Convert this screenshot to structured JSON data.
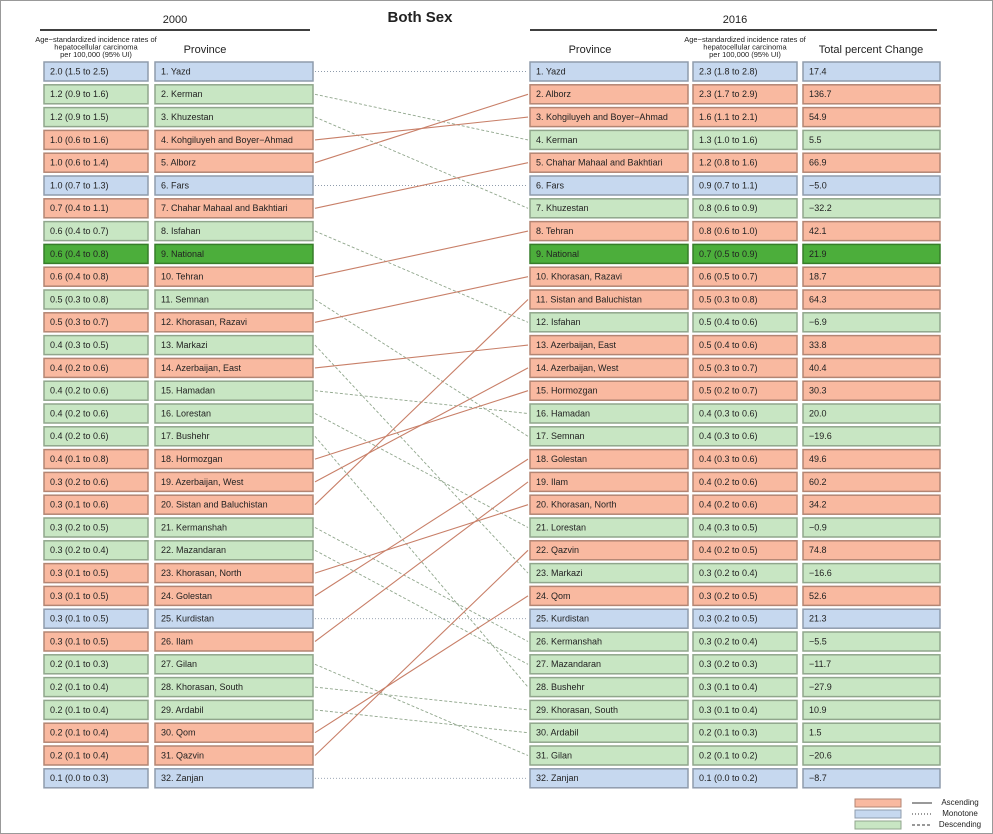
{
  "title": "Both Sex",
  "left": {
    "heading": "2000",
    "rate_header": [
      "Age−standardized incidence rates of",
      "hepatocellular carcinoma",
      "per 100,000 (95% UI)"
    ],
    "province_header": "Province",
    "rows": [
      {
        "rate": "2.0 (1.5 to 2.5)",
        "name": "1. Yazd",
        "color": "#c6d8ef"
      },
      {
        "rate": "1.2 (0.9 to 1.6)",
        "name": "2. Kerman",
        "color": "#c8e6c3"
      },
      {
        "rate": "1.2 (0.9 to 1.5)",
        "name": "3. Khuzestan",
        "color": "#c8e6c3"
      },
      {
        "rate": "1.0 (0.6 to 1.6)",
        "name": "4. Kohgiluyeh and Boyer−Ahmad",
        "color": "#f9b9a0"
      },
      {
        "rate": "1.0 (0.6 to 1.4)",
        "name": "5. Alborz",
        "color": "#f9b9a0"
      },
      {
        "rate": "1.0 (0.7 to 1.3)",
        "name": "6. Fars",
        "color": "#c6d8ef"
      },
      {
        "rate": "0.7 (0.4 to 1.1)",
        "name": "7. Chahar Mahaal and Bakhtiari",
        "color": "#f9b9a0"
      },
      {
        "rate": "0.6 (0.4 to 0.7)",
        "name": "8. Isfahan",
        "color": "#c8e6c3"
      },
      {
        "rate": "0.6 (0.4 to 0.8)",
        "name": "9. National",
        "color": "#4cae3b"
      },
      {
        "rate": "0.6 (0.4 to 0.8)",
        "name": "10. Tehran",
        "color": "#f9b9a0"
      },
      {
        "rate": "0.5 (0.3 to 0.8)",
        "name": "11. Semnan",
        "color": "#c8e6c3"
      },
      {
        "rate": "0.5 (0.3 to 0.7)",
        "name": "12. Khorasan, Razavi",
        "color": "#f9b9a0"
      },
      {
        "rate": "0.4 (0.3 to 0.5)",
        "name": "13. Markazi",
        "color": "#c8e6c3"
      },
      {
        "rate": "0.4 (0.2 to 0.6)",
        "name": "14. Azerbaijan, East",
        "color": "#f9b9a0"
      },
      {
        "rate": "0.4 (0.2 to 0.6)",
        "name": "15. Hamadan",
        "color": "#c8e6c3"
      },
      {
        "rate": "0.4 (0.2 to 0.6)",
        "name": "16. Lorestan",
        "color": "#c8e6c3"
      },
      {
        "rate": "0.4 (0.2 to 0.6)",
        "name": "17. Bushehr",
        "color": "#c8e6c3"
      },
      {
        "rate": "0.4 (0.1 to 0.8)",
        "name": "18. Hormozgan",
        "color": "#f9b9a0"
      },
      {
        "rate": "0.3 (0.2 to 0.6)",
        "name": "19. Azerbaijan, West",
        "color": "#f9b9a0"
      },
      {
        "rate": "0.3 (0.1 to 0.6)",
        "name": "20. Sistan and Baluchistan",
        "color": "#f9b9a0"
      },
      {
        "rate": "0.3 (0.2 to 0.5)",
        "name": "21. Kermanshah",
        "color": "#c8e6c3"
      },
      {
        "rate": "0.3 (0.2 to 0.4)",
        "name": "22. Mazandaran",
        "color": "#c8e6c3"
      },
      {
        "rate": "0.3 (0.1 to 0.5)",
        "name": "23. Khorasan, North",
        "color": "#f9b9a0"
      },
      {
        "rate": "0.3 (0.1 to 0.5)",
        "name": "24. Golestan",
        "color": "#f9b9a0"
      },
      {
        "rate": "0.3 (0.1 to 0.5)",
        "name": "25. Kurdistan",
        "color": "#c6d8ef"
      },
      {
        "rate": "0.3 (0.1 to 0.5)",
        "name": "26. Ilam",
        "color": "#f9b9a0"
      },
      {
        "rate": "0.2 (0.1 to 0.3)",
        "name": "27. Gilan",
        "color": "#c8e6c3"
      },
      {
        "rate": "0.2 (0.1 to 0.4)",
        "name": "28. Khorasan, South",
        "color": "#c8e6c3"
      },
      {
        "rate": "0.2 (0.1 to 0.4)",
        "name": "29. Ardabil",
        "color": "#c8e6c3"
      },
      {
        "rate": "0.2 (0.1 to 0.4)",
        "name": "30. Qom",
        "color": "#f9b9a0"
      },
      {
        "rate": "0.2 (0.1 to 0.4)",
        "name": "31. Qazvin",
        "color": "#f9b9a0"
      },
      {
        "rate": "0.1 (0.0 to 0.3)",
        "name": "32. Zanjan",
        "color": "#c6d8ef"
      }
    ]
  },
  "right": {
    "heading": "2016",
    "province_header": "Province",
    "rate_header": [
      "Age−standardized incidence rates of",
      "hepatocellular carcinoma",
      "per 100,000 (95% UI)"
    ],
    "change_header": "Total percent Change",
    "rows": [
      {
        "name": "1. Yazd",
        "rate": "2.3 (1.8 to 2.8)",
        "change": "17.4",
        "color": "#c6d8ef"
      },
      {
        "name": "2. Alborz",
        "rate": "2.3 (1.7 to 2.9)",
        "change": "136.7",
        "color": "#f9b9a0"
      },
      {
        "name": "3. Kohgiluyeh and Boyer−Ahmad",
        "rate": "1.6 (1.1 to 2.1)",
        "change": "54.9",
        "color": "#f9b9a0"
      },
      {
        "name": "4. Kerman",
        "rate": "1.3 (1.0 to 1.6)",
        "change": "5.5",
        "color": "#c8e6c3"
      },
      {
        "name": "5. Chahar Mahaal and Bakhtiari",
        "rate": "1.2 (0.8 to 1.6)",
        "change": "66.9",
        "color": "#f9b9a0"
      },
      {
        "name": "6. Fars",
        "rate": "0.9 (0.7 to 1.1)",
        "change": "−5.0",
        "color": "#c6d8ef"
      },
      {
        "name": "7. Khuzestan",
        "rate": "0.8 (0.6 to 0.9)",
        "change": "−32.2",
        "color": "#c8e6c3"
      },
      {
        "name": "8. Tehran",
        "rate": "0.8 (0.6 to 1.0)",
        "change": "42.1",
        "color": "#f9b9a0"
      },
      {
        "name": "9. National",
        "rate": "0.7 (0.5 to 0.9)",
        "change": "21.9",
        "color": "#4cae3b"
      },
      {
        "name": "10. Khorasan, Razavi",
        "rate": "0.6 (0.5 to 0.7)",
        "change": "18.7",
        "color": "#f9b9a0"
      },
      {
        "name": "11. Sistan and Baluchistan",
        "rate": "0.5 (0.3 to 0.8)",
        "change": "64.3",
        "color": "#f9b9a0"
      },
      {
        "name": "12. Isfahan",
        "rate": "0.5 (0.4 to 0.6)",
        "change": "−6.9",
        "color": "#c8e6c3"
      },
      {
        "name": "13. Azerbaijan, East",
        "rate": "0.5 (0.4 to 0.6)",
        "change": "33.8",
        "color": "#f9b9a0"
      },
      {
        "name": "14. Azerbaijan, West",
        "rate": "0.5 (0.3 to 0.7)",
        "change": "40.4",
        "color": "#f9b9a0"
      },
      {
        "name": "15. Hormozgan",
        "rate": "0.5 (0.2 to 0.7)",
        "change": "30.3",
        "color": "#f9b9a0"
      },
      {
        "name": "16. Hamadan",
        "rate": "0.4 (0.3 to 0.6)",
        "change": "20.0",
        "color": "#c8e6c3"
      },
      {
        "name": "17. Semnan",
        "rate": "0.4 (0.3 to 0.6)",
        "change": "−19.6",
        "color": "#c8e6c3"
      },
      {
        "name": "18. Golestan",
        "rate": "0.4 (0.3 to 0.6)",
        "change": "49.6",
        "color": "#f9b9a0"
      },
      {
        "name": "19. Ilam",
        "rate": "0.4 (0.2 to 0.6)",
        "change": "60.2",
        "color": "#f9b9a0"
      },
      {
        "name": "20. Khorasan, North",
        "rate": "0.4 (0.2 to 0.6)",
        "change": "34.2",
        "color": "#f9b9a0"
      },
      {
        "name": "21. Lorestan",
        "rate": "0.4 (0.3 to 0.5)",
        "change": "−0.9",
        "color": "#c8e6c3"
      },
      {
        "name": "22. Qazvin",
        "rate": "0.4 (0.2 to 0.5)",
        "change": "74.8",
        "color": "#f9b9a0"
      },
      {
        "name": "23. Markazi",
        "rate": "0.3 (0.2 to 0.4)",
        "change": "−16.6",
        "color": "#c8e6c3"
      },
      {
        "name": "24. Qom",
        "rate": "0.3 (0.2 to 0.5)",
        "change": "52.6",
        "color": "#f9b9a0"
      },
      {
        "name": "25. Kurdistan",
        "rate": "0.3 (0.2 to 0.5)",
        "change": "21.3",
        "color": "#c6d8ef"
      },
      {
        "name": "26. Kermanshah",
        "rate": "0.3 (0.2 to 0.4)",
        "change": "−5.5",
        "color": "#c8e6c3"
      },
      {
        "name": "27. Mazandaran",
        "rate": "0.3 (0.2 to 0.3)",
        "change": "−11.7",
        "color": "#c8e6c3"
      },
      {
        "name": "28. Bushehr",
        "rate": "0.3 (0.1 to 0.4)",
        "change": "−27.9",
        "color": "#c8e6c3"
      },
      {
        "name": "29. Khorasan, South",
        "rate": "0.3 (0.1 to 0.4)",
        "change": "10.9",
        "color": "#c8e6c3"
      },
      {
        "name": "30. Ardabil",
        "rate": "0.2 (0.1 to 0.3)",
        "change": "1.5",
        "color": "#c8e6c3"
      },
      {
        "name": "31. Gilan",
        "rate": "0.2 (0.1 to 0.2)",
        "change": "−20.6",
        "color": "#c8e6c3"
      },
      {
        "name": "32. Zanjan",
        "rate": "0.1 (0.0 to 0.2)",
        "change": "−8.7",
        "color": "#c6d8ef"
      }
    ]
  },
  "legend": [
    {
      "label": "Ascending",
      "color": "#f9b9a0",
      "line": "solid"
    },
    {
      "label": "Monotone",
      "color": "#c6d8ef",
      "line": "dotted"
    },
    {
      "label": "Descending",
      "color": "#c8e6c3",
      "line": "dashed"
    }
  ]
}
